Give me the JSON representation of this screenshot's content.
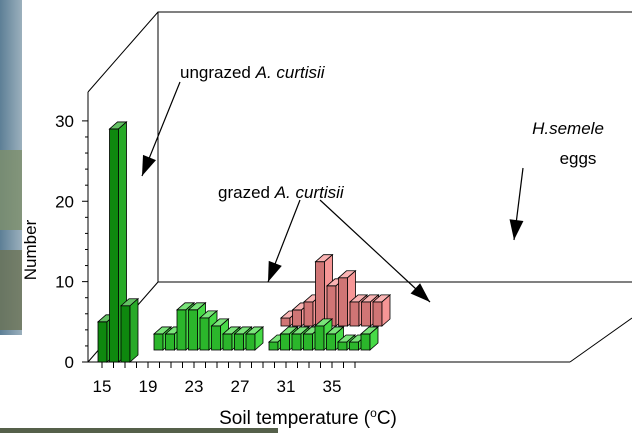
{
  "chart_data": {
    "type": "bar",
    "variant": "3d-bar",
    "xlabel": "Soil temperature (°C)",
    "xlabel_parts": {
      "before": "Soil temperature (",
      "sup": "o",
      "after": "C)"
    },
    "ylabel": "Number",
    "ylim": [
      0,
      30
    ],
    "y_ticks": [
      0,
      10,
      20,
      30
    ],
    "x_ticks": [
      15,
      19,
      23,
      27,
      31,
      35
    ],
    "grid": false,
    "colors": {
      "ungrazed": "#10a010",
      "grazed": "#33d633",
      "eggs": "#f58a8a"
    },
    "series": [
      {
        "key": "ungrazed",
        "x": [
          15,
          16,
          17
        ],
        "values": [
          5,
          29,
          7
        ]
      },
      {
        "key": "grazed",
        "x": [
          19,
          20,
          21,
          22,
          23,
          24,
          25,
          26,
          27,
          29,
          30,
          31,
          32,
          33,
          34,
          35,
          36,
          37
        ],
        "values": [
          2,
          2,
          5,
          5,
          4,
          3,
          2,
          2,
          2,
          1,
          2,
          2,
          2,
          3,
          2,
          1,
          1,
          2
        ]
      },
      {
        "key": "eggs",
        "x": [
          29,
          30,
          31,
          32,
          33,
          34,
          35,
          36,
          37
        ],
        "values": [
          1,
          2,
          3,
          8,
          5,
          6,
          3,
          3,
          3
        ]
      }
    ],
    "annotations": {
      "ungrazed": {
        "text": "ungrazed ",
        "italic": "A. curtisii"
      },
      "grazed": {
        "text": "grazed ",
        "italic": "A. curtisii"
      },
      "eggs": {
        "italic": "H.semele",
        "text": "eggs"
      }
    }
  }
}
